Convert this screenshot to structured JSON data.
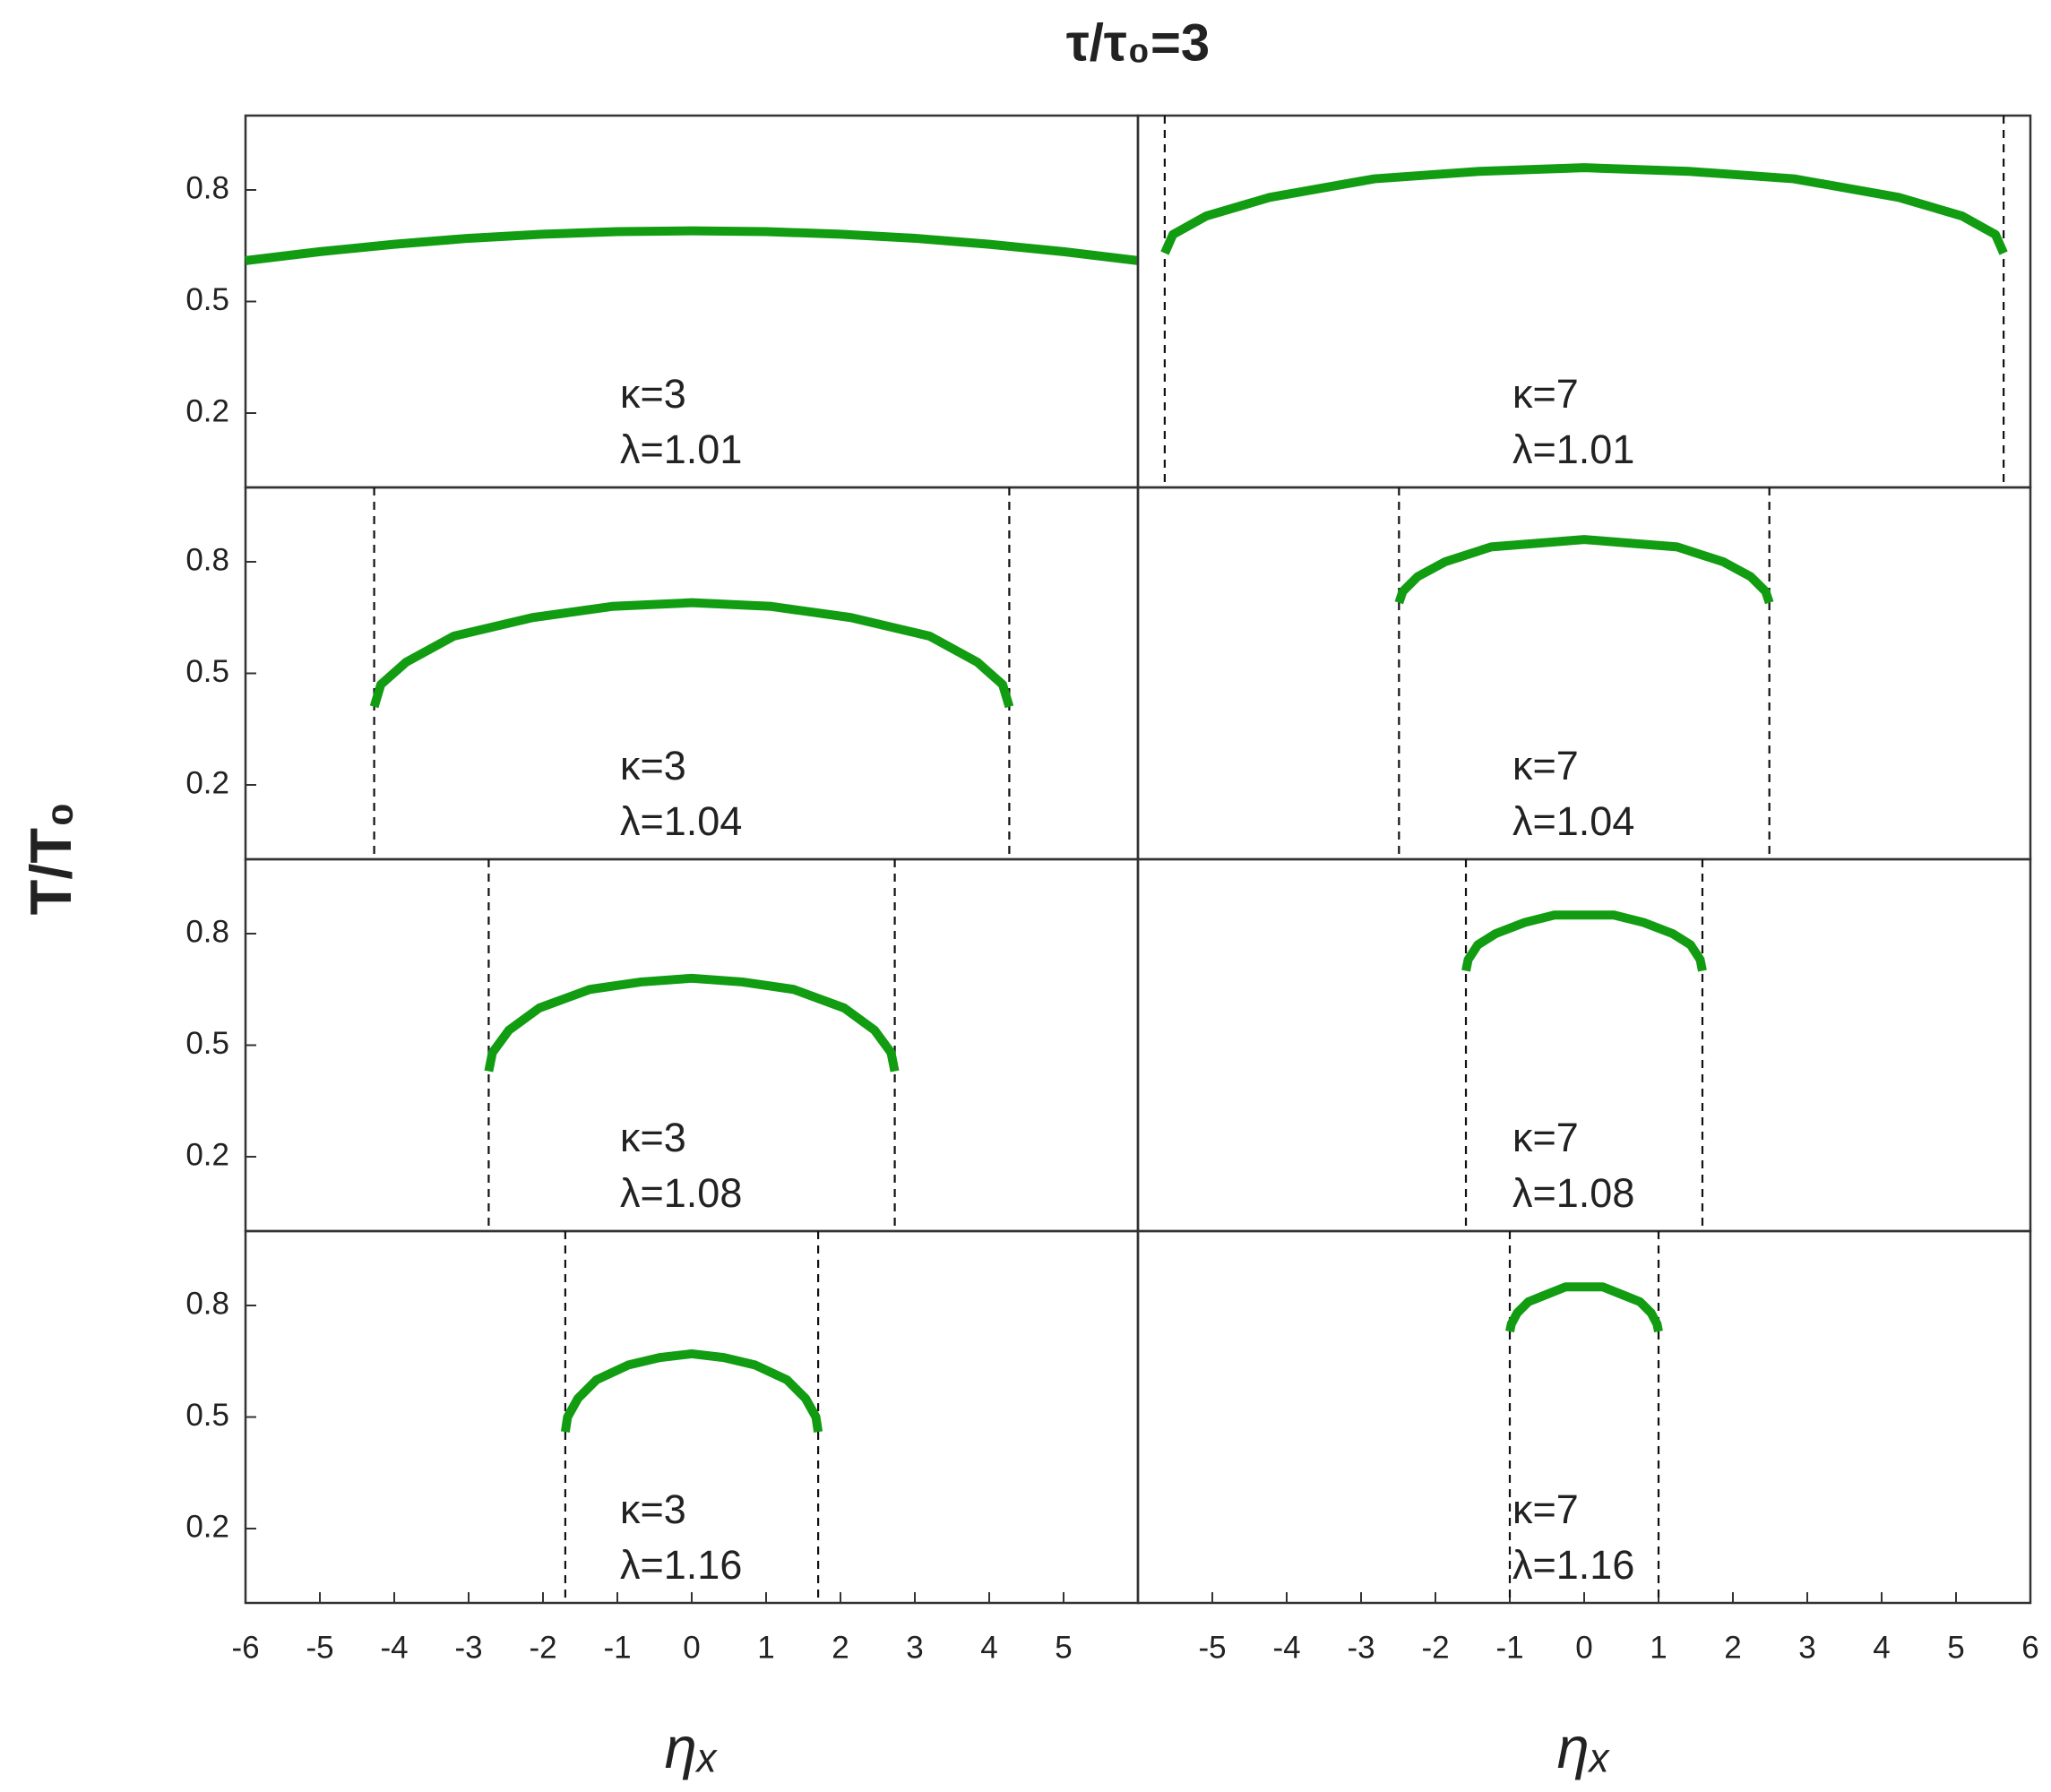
{
  "figure": {
    "title": "τ/τ₀=3",
    "ylabel": "T/T₀",
    "xlabels": [
      "ηₓ",
      "ηₓ"
    ]
  },
  "chart_data": [
    {
      "type": "line",
      "xlim": [
        -6,
        6
      ],
      "ylim": [
        0,
        1
      ],
      "yticks": [
        0.2,
        0.5,
        0.8
      ],
      "annotations": [
        "κ=3",
        "λ=1.01"
      ],
      "x": [
        -6,
        -5,
        -4,
        -3,
        -2,
        -1,
        0,
        1,
        2,
        3,
        4,
        5,
        6
      ],
      "series": [
        {
          "color": "#119c11",
          "values": [
            0.61,
            0.634,
            0.654,
            0.67,
            0.681,
            0.688,
            0.69,
            0.688,
            0.681,
            0.67,
            0.654,
            0.634,
            0.61
          ]
        }
      ]
    },
    {
      "type": "line",
      "xlim": [
        -6,
        6
      ],
      "ylim": [
        0,
        1
      ],
      "annotations": [
        "κ=7",
        "λ=1.01"
      ],
      "boundaries": [
        -5.64,
        5.64
      ],
      "x": [
        -5.64,
        -5.53,
        -5.08,
        -4.23,
        -2.82,
        -1.41,
        0,
        1.41,
        2.82,
        4.23,
        5.08,
        5.53,
        5.64
      ],
      "series": [
        {
          "color": "#119c11",
          "values": [
            0.63,
            0.68,
            0.73,
            0.78,
            0.83,
            0.85,
            0.86,
            0.85,
            0.83,
            0.78,
            0.73,
            0.68,
            0.63
          ]
        }
      ]
    },
    {
      "type": "line",
      "xlim": [
        -6,
        6
      ],
      "ylim": [
        0,
        1
      ],
      "yticks": [
        0.2,
        0.5,
        0.8
      ],
      "annotations": [
        "κ=3",
        "λ=1.04"
      ],
      "boundaries": [
        -4.27,
        4.27
      ],
      "x": [
        -4.27,
        -4.18,
        -3.84,
        -3.2,
        -2.14,
        -1.07,
        0,
        1.07,
        2.14,
        3.2,
        3.84,
        4.18,
        4.27
      ],
      "series": [
        {
          "color": "#119c11",
          "values": [
            0.41,
            0.47,
            0.53,
            0.6,
            0.65,
            0.68,
            0.69,
            0.68,
            0.65,
            0.6,
            0.53,
            0.47,
            0.41
          ]
        }
      ]
    },
    {
      "type": "line",
      "xlim": [
        -6,
        6
      ],
      "ylim": [
        0,
        1
      ],
      "annotations": [
        "κ=7",
        "λ=1.04"
      ],
      "boundaries": [
        -2.49,
        2.49
      ],
      "x": [
        -2.49,
        -2.44,
        -2.24,
        -1.87,
        -1.25,
        -0.62,
        0,
        0.62,
        1.25,
        1.87,
        2.24,
        2.44,
        2.49
      ],
      "series": [
        {
          "color": "#119c11",
          "values": [
            0.69,
            0.72,
            0.76,
            0.8,
            0.84,
            0.85,
            0.86,
            0.85,
            0.84,
            0.8,
            0.76,
            0.72,
            0.69
          ]
        }
      ]
    },
    {
      "type": "line",
      "xlim": [
        -6,
        6
      ],
      "ylim": [
        0,
        1
      ],
      "yticks": [
        0.2,
        0.5,
        0.8
      ],
      "annotations": [
        "κ=3",
        "λ=1.08"
      ],
      "boundaries": [
        -2.73,
        2.73
      ],
      "x": [
        -2.73,
        -2.68,
        -2.46,
        -2.05,
        -1.37,
        -0.68,
        0,
        0.68,
        1.37,
        2.05,
        2.46,
        2.68,
        2.73
      ],
      "series": [
        {
          "color": "#119c11",
          "values": [
            0.43,
            0.48,
            0.54,
            0.6,
            0.65,
            0.67,
            0.68,
            0.67,
            0.65,
            0.6,
            0.54,
            0.48,
            0.43
          ]
        }
      ]
    },
    {
      "type": "line",
      "xlim": [
        -6,
        6
      ],
      "ylim": [
        0,
        1
      ],
      "annotations": [
        "κ=7",
        "λ=1.08"
      ],
      "boundaries": [
        -1.59,
        1.59
      ],
      "x": [
        -1.59,
        -1.56,
        -1.43,
        -1.19,
        -0.8,
        -0.4,
        0,
        0.4,
        0.8,
        1.19,
        1.43,
        1.56,
        1.59
      ],
      "series": [
        {
          "color": "#119c11",
          "values": [
            0.7,
            0.73,
            0.77,
            0.8,
            0.83,
            0.85,
            0.85,
            0.85,
            0.83,
            0.8,
            0.77,
            0.73,
            0.7
          ]
        }
      ]
    },
    {
      "type": "line",
      "xlim": [
        -6,
        6
      ],
      "ylim": [
        0,
        1
      ],
      "yticks": [
        0.2,
        0.5,
        0.8
      ],
      "xticks": [
        -6,
        -5,
        -4,
        -3,
        -2,
        -1,
        0,
        1,
        2,
        3,
        4,
        5
      ],
      "annotations": [
        "κ=3",
        "λ=1.16"
      ],
      "boundaries": [
        -1.7,
        1.7
      ],
      "x": [
        -1.7,
        -1.67,
        -1.53,
        -1.28,
        -0.85,
        -0.43,
        0,
        0.43,
        0.85,
        1.28,
        1.53,
        1.67,
        1.7
      ],
      "series": [
        {
          "color": "#119c11",
          "values": [
            0.46,
            0.5,
            0.55,
            0.6,
            0.64,
            0.66,
            0.67,
            0.66,
            0.64,
            0.6,
            0.55,
            0.5,
            0.46
          ]
        }
      ]
    },
    {
      "type": "line",
      "xlim": [
        -6,
        6
      ],
      "ylim": [
        0,
        1
      ],
      "xticks": [
        -5,
        -4,
        -3,
        -2,
        -1,
        0,
        1,
        2,
        3,
        4,
        5,
        6
      ],
      "annotations": [
        "κ=7",
        "λ=1.16"
      ],
      "boundaries": [
        -1,
        1
      ],
      "x": [
        -1,
        -0.98,
        -0.9,
        -0.75,
        -0.5,
        -0.25,
        0,
        0.25,
        0.5,
        0.75,
        0.9,
        0.98,
        1
      ],
      "series": [
        {
          "color": "#119c11",
          "values": [
            0.73,
            0.75,
            0.78,
            0.81,
            0.83,
            0.85,
            0.85,
            0.85,
            0.83,
            0.81,
            0.78,
            0.75,
            0.73
          ]
        }
      ]
    }
  ]
}
